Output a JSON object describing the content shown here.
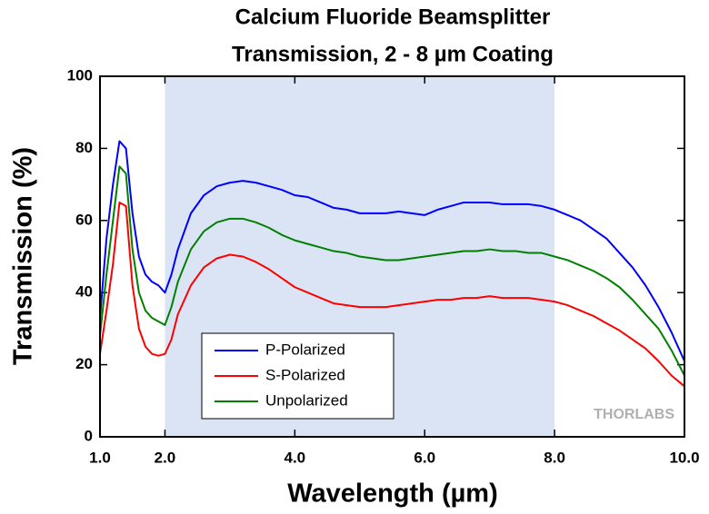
{
  "chart_data": {
    "type": "line",
    "title": [
      "Calcium Fluoride Beamsplitter",
      "Transmission, 2 - 8 µm Coating"
    ],
    "x_label": "Wavelength (µm)",
    "y_label": "Transmission (%)",
    "watermark": "THORLABS",
    "x": [
      1.0,
      1.1,
      1.2,
      1.3,
      1.4,
      1.5,
      1.6,
      1.7,
      1.8,
      1.9,
      2.0,
      2.1,
      2.2,
      2.4,
      2.6,
      2.8,
      3.0,
      3.2,
      3.4,
      3.6,
      3.8,
      4.0,
      4.2,
      4.4,
      4.6,
      4.8,
      5.0,
      5.2,
      5.4,
      5.6,
      5.8,
      6.0,
      6.2,
      6.4,
      6.6,
      6.8,
      7.0,
      7.2,
      7.4,
      7.6,
      7.8,
      8.0,
      8.2,
      8.4,
      8.6,
      8.8,
      9.0,
      9.2,
      9.4,
      9.6,
      9.8,
      10.0
    ],
    "series": [
      {
        "name": "P-Polarized",
        "color": "#0000ff",
        "values": [
          33,
          55,
          70,
          82,
          80,
          62,
          50,
          45,
          43,
          42,
          40,
          45,
          52,
          62,
          67,
          69.5,
          70.5,
          71,
          70.5,
          69.5,
          68.5,
          67,
          66.5,
          65,
          63.5,
          63,
          62,
          62,
          62,
          62.5,
          62,
          61.5,
          63,
          64,
          65,
          65,
          65,
          64.5,
          64.5,
          64.5,
          64,
          63,
          61.5,
          60,
          57.5,
          55,
          51,
          47,
          42,
          36,
          29,
          21
        ]
      },
      {
        "name": "S-Polarized",
        "color": "#ff0000",
        "values": [
          23,
          35,
          48,
          65,
          64,
          42,
          30,
          25,
          23,
          22.5,
          23,
          27,
          34,
          42,
          47,
          49.5,
          50.5,
          50,
          48.5,
          46.5,
          44,
          41.5,
          40,
          38.5,
          37,
          36.5,
          36,
          36,
          36,
          36.5,
          37,
          37.5,
          38,
          38,
          38.5,
          38.5,
          39,
          38.5,
          38.5,
          38.5,
          38,
          37.5,
          36.5,
          35,
          33.5,
          31.5,
          29.5,
          27,
          24.5,
          21,
          17,
          14
        ]
      },
      {
        "name": "Unpolarized",
        "color": "#008000",
        "values": [
          28,
          45,
          60,
          75,
          73,
          52,
          40,
          35,
          33,
          32,
          31,
          36,
          43,
          52,
          57,
          59.5,
          60.5,
          60.5,
          59.5,
          58,
          56,
          54.5,
          53.5,
          52.5,
          51.5,
          51,
          50,
          49.5,
          49,
          49,
          49.5,
          50,
          50.5,
          51,
          51.5,
          51.5,
          52,
          51.5,
          51.5,
          51,
          51,
          50,
          49,
          47.5,
          46,
          44,
          41.5,
          38,
          34,
          30,
          24,
          17
        ]
      }
    ],
    "xlim": [
      1,
      10
    ],
    "ylim": [
      0,
      100
    ],
    "xticks": [
      {
        "value": 1,
        "label": "1.0"
      },
      {
        "value": 2,
        "label": "2.0"
      },
      {
        "value": 4,
        "label": "4.0"
      },
      {
        "value": 6,
        "label": "6.0"
      },
      {
        "value": 8,
        "label": "8.0"
      },
      {
        "value": 10,
        "label": "10.0"
      }
    ],
    "yticks": [
      0,
      20,
      40,
      60,
      80,
      100
    ],
    "shaded_range": [
      2,
      8
    ],
    "shaded_color": "#dbe4f5",
    "grid": false,
    "legend": "lower left"
  }
}
